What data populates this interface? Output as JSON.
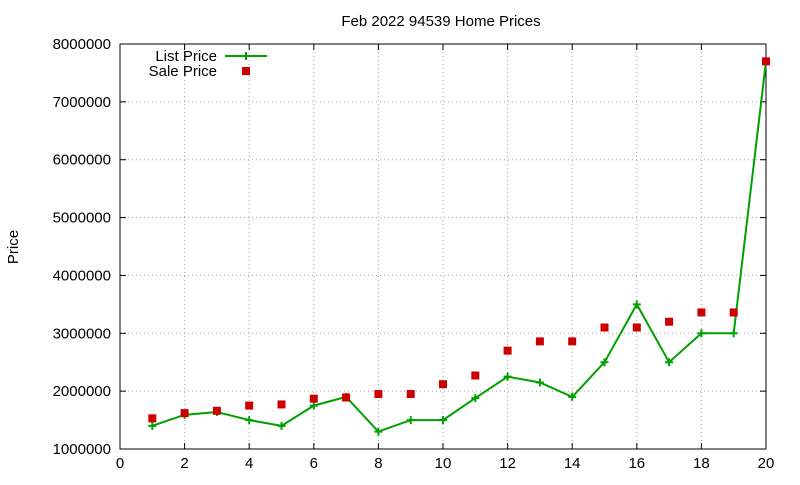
{
  "chart_data": {
    "type": "line",
    "title": "Feb 2022 94539 Home Prices",
    "xlabel": "",
    "ylabel": "Price",
    "xlim": [
      0,
      20
    ],
    "ylim": [
      1000000,
      8000000
    ],
    "x_ticks": [
      0,
      2,
      4,
      6,
      8,
      10,
      12,
      14,
      16,
      18,
      20
    ],
    "y_ticks": [
      1000000,
      2000000,
      3000000,
      4000000,
      5000000,
      6000000,
      7000000,
      8000000
    ],
    "x_tick_labels": [
      "0",
      "2",
      "4",
      "6",
      "8",
      "10",
      "12",
      "14",
      "16",
      "18",
      "20"
    ],
    "y_tick_labels": [
      "1000000",
      "2000000",
      "3000000",
      "4000000",
      "5000000",
      "6000000",
      "7000000",
      "8000000"
    ],
    "grid": true,
    "legend_position": "top-left",
    "series": [
      {
        "name": "List Price",
        "style": "line-with-plus-markers",
        "color": "#00a000",
        "x": [
          1,
          2,
          3,
          4,
          5,
          6,
          7,
          8,
          9,
          10,
          11,
          12,
          13,
          14,
          15,
          16,
          17,
          18,
          19,
          20
        ],
        "values": [
          1400000,
          1590000,
          1640000,
          1500000,
          1400000,
          1750000,
          1900000,
          1300000,
          1500000,
          1500000,
          1880000,
          2250000,
          2150000,
          1900000,
          2500000,
          3500000,
          2500000,
          3000000,
          3000000,
          7700000
        ]
      },
      {
        "name": "Sale Price",
        "style": "square-markers",
        "color": "#cc0000",
        "x": [
          1,
          2,
          3,
          4,
          5,
          6,
          7,
          8,
          9,
          10,
          11,
          12,
          13,
          14,
          15,
          16,
          17,
          18,
          19,
          20
        ],
        "values": [
          1530000,
          1620000,
          1660000,
          1750000,
          1770000,
          1870000,
          1890000,
          1950000,
          1950000,
          2120000,
          2270000,
          2700000,
          2860000,
          2860000,
          3100000,
          3100000,
          3200000,
          3360000,
          3360000,
          7700000
        ]
      }
    ]
  }
}
